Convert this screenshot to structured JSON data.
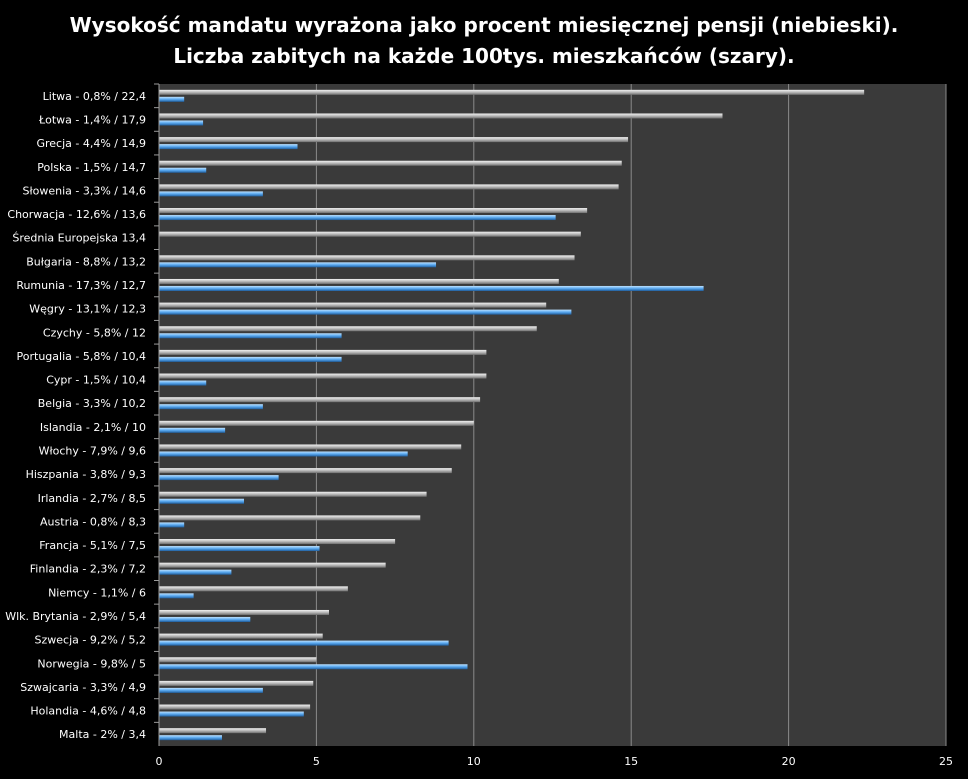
{
  "title_line1": "Wysokość mandatu wyrażona jako procent miesięcznej pensji (niebieski).",
  "title_line2": "Liczba zabitych na każde 100tys. mieszkańców (szary).",
  "colors": {
    "background": "#000000",
    "plot_area": "#3a3a3a",
    "gridline": "#8a8a8a",
    "fine_blue": "#5aa9f0",
    "deaths_gray": "#c8c8c8"
  },
  "chart_data": {
    "type": "bar",
    "orientation": "horizontal",
    "title": "Wysokość mandatu wyrażona jako procent miesięcznej pensji (niebieski). Liczba zabitych na każde 100tys. mieszkańców (szary).",
    "xlim": [
      0,
      25
    ],
    "x_ticks": [
      0,
      5,
      10,
      15,
      20,
      25
    ],
    "grid": true,
    "categories": [
      "Litwa - 0,8% / 22,4",
      "Łotwa - 1,4% / 17,9",
      "Grecja - 4,4% / 14,9",
      "Polska - 1,5% / 14,7",
      "Słowenia - 3,3% / 14,6",
      "Chorwacja - 12,6% / 13,6",
      "Średnia Europejska 13,4",
      "Bułgaria - 8,8% / 13,2",
      "Rumunia - 17,3% / 12,7",
      "Węgry - 13,1% / 12,3",
      "Czychy - 5,8% / 12",
      "Portugalia - 5,8% / 10,4",
      "Cypr - 1,5% / 10,4",
      "Belgia - 3,3% / 10,2",
      "Islandia - 2,1% / 10",
      "Włochy - 7,9% / 9,6",
      "Hiszpania - 3,8% / 9,3",
      "Irlandia - 2,7% / 8,5",
      "Austria - 0,8% / 8,3",
      "Francja - 5,1% / 7,5",
      "Finlandia - 2,3% / 7,2",
      "Niemcy - 1,1% / 6",
      "Wlk. Brytania - 2,9% / 5,4",
      "Szwecja - 9,2% / 5,2",
      "Norwegia - 9,8% / 5",
      "Szwajcaria - 3,3% / 4,9",
      "Holandia - 4,6% / 4,8",
      "Malta - 2% / 3,4"
    ],
    "series": [
      {
        "color": "gray",
        "values": [
          22.4,
          17.9,
          14.9,
          14.7,
          14.6,
          13.6,
          13.4,
          13.2,
          12.7,
          12.3,
          12,
          10.4,
          10.4,
          10.2,
          10,
          9.6,
          9.3,
          8.5,
          8.3,
          7.5,
          7.2,
          6,
          5.4,
          5.2,
          5,
          4.9,
          4.8,
          3.4
        ]
      },
      {
        "color": "blue",
        "values": [
          0.8,
          1.4,
          4.4,
          1.5,
          3.3,
          12.6,
          null,
          8.8,
          17.3,
          13.1,
          5.8,
          5.8,
          1.5,
          3.3,
          2.1,
          7.9,
          3.8,
          2.7,
          0.8,
          5.1,
          2.3,
          1.1,
          2.9,
          9.2,
          9.8,
          3.3,
          4.6,
          2
        ]
      }
    ]
  }
}
